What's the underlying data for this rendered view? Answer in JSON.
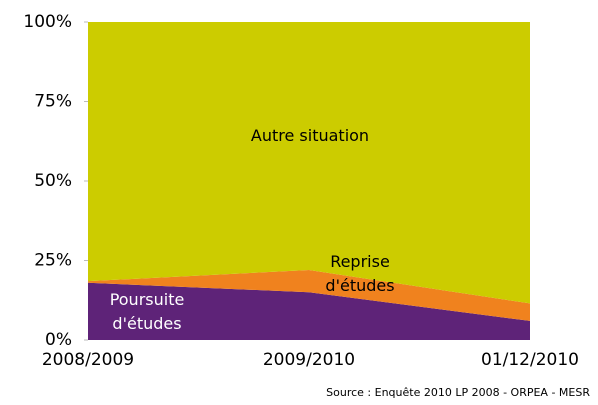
{
  "chart_data": {
    "type": "stacked-area",
    "categories": [
      "2008/2009",
      "2009/2010",
      "01/12/2010"
    ],
    "series": [
      {
        "name": "Poursuite d'études",
        "color": "#5e2378",
        "values": [
          18,
          15,
          6
        ]
      },
      {
        "name": "Reprise d'études",
        "color": "#f0821e",
        "values": [
          0.5,
          7,
          5.5
        ]
      },
      {
        "name": "Autre situation",
        "color": "#cccc00",
        "values": [
          81.5,
          78,
          88.5
        ]
      }
    ],
    "ylim": [
      0,
      100
    ],
    "yticks": [
      {
        "value": 0,
        "label": "0%"
      },
      {
        "value": 25,
        "label": "25%"
      },
      {
        "value": 50,
        "label": "50%"
      },
      {
        "value": 75,
        "label": "75%"
      },
      {
        "value": 100,
        "label": "100%"
      }
    ],
    "note": "Source : Enquête 2010 LP 2008 - ORPEA - MESR"
  }
}
